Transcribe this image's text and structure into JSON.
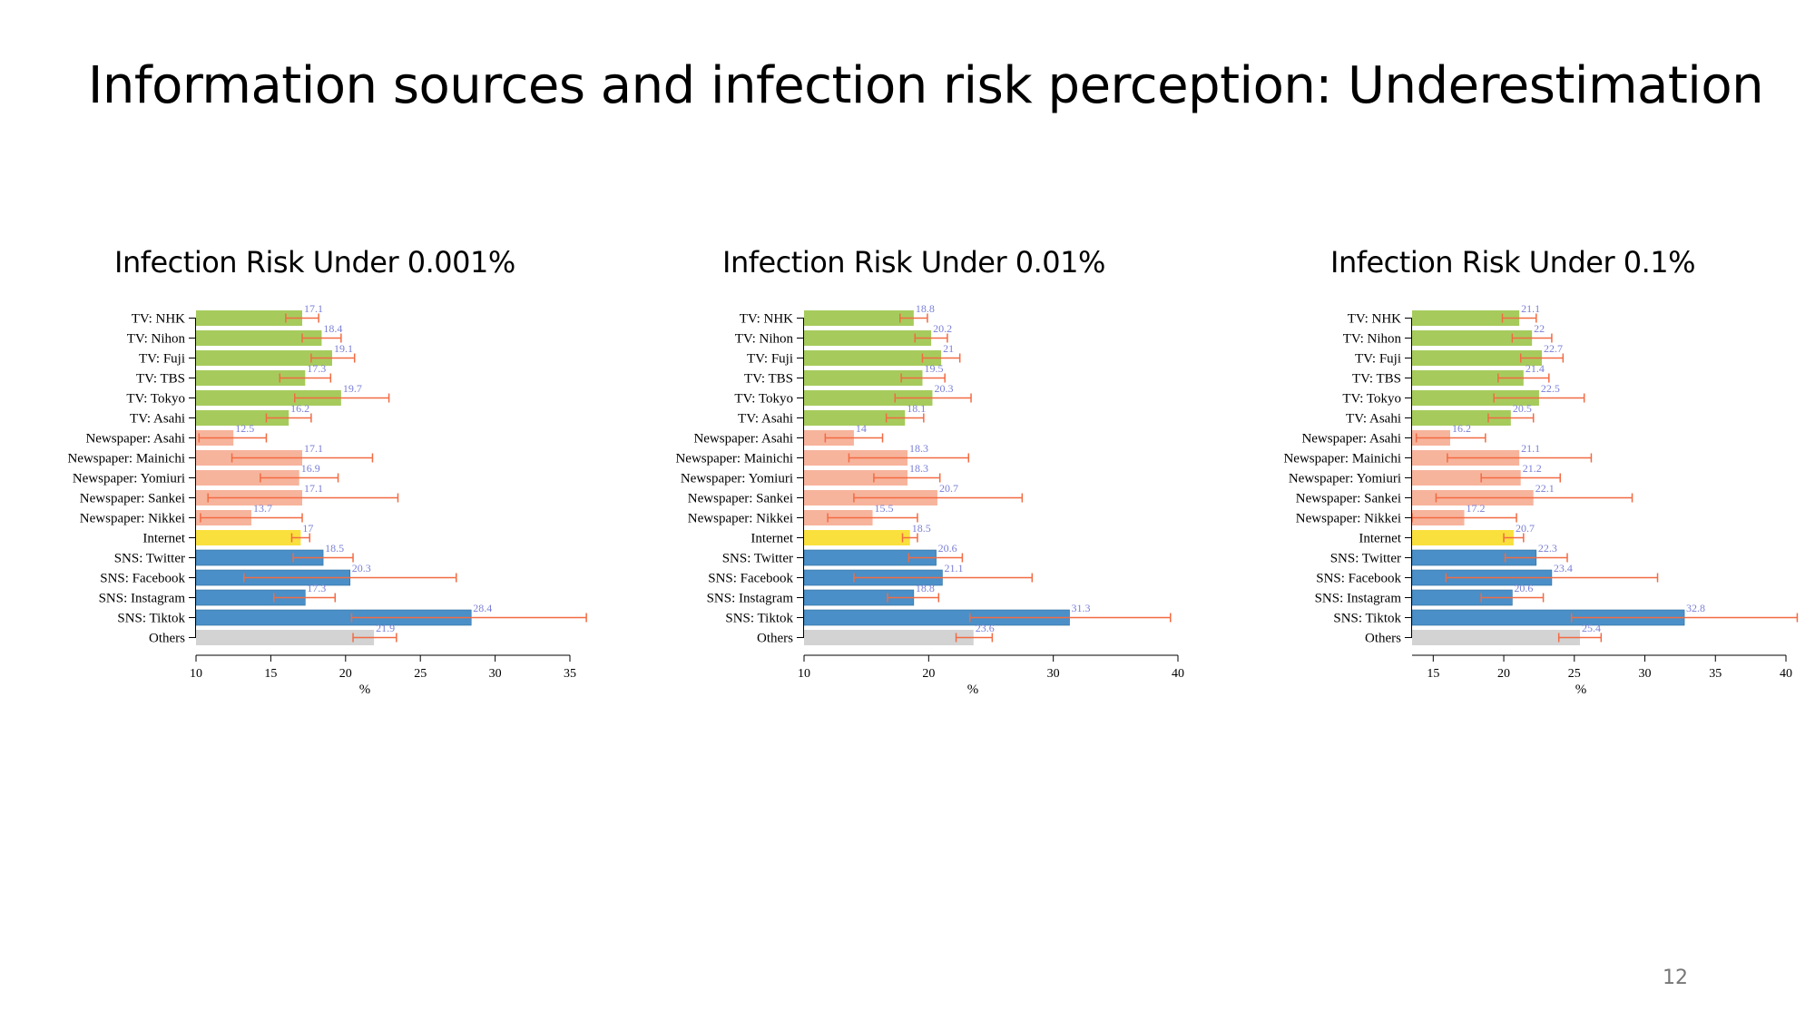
{
  "slide": {
    "title": "Information sources and infection risk perception: Underestimation",
    "page_number": "12"
  },
  "colors": {
    "tv": "#a6cb5c",
    "newspaper": "#f7b49c",
    "internet": "#fae03c",
    "sns": "#4a8fc7",
    "others": "#d3d3d3",
    "error_bar": "#f26b43",
    "data_label": "#7a7fd6"
  },
  "chart_data": [
    {
      "type": "bar",
      "orientation": "horizontal",
      "title": "Infection Risk Under 0.001%",
      "xlabel": "%",
      "xlim": [
        10,
        35
      ],
      "xticks": [
        10,
        15,
        20,
        25,
        30,
        35
      ],
      "categories": [
        "TV: NHK",
        "TV: Nihon",
        "TV: Fuji",
        "TV: TBS",
        "TV: Tokyo",
        "TV: Asahi",
        "Newspaper: Asahi",
        "Newspaper: Mainichi",
        "Newspaper: Yomiuri",
        "Newspaper: Sankei",
        "Newspaper: Nikkei",
        "Internet",
        "SNS: Twitter",
        "SNS: Facebook",
        "SNS: Instagram",
        "SNS: Tiktok",
        "Others"
      ],
      "groups": [
        "tv",
        "tv",
        "tv",
        "tv",
        "tv",
        "tv",
        "newspaper",
        "newspaper",
        "newspaper",
        "newspaper",
        "newspaper",
        "internet",
        "sns",
        "sns",
        "sns",
        "sns",
        "others"
      ],
      "values": [
        17.1,
        18.4,
        19.1,
        17.3,
        19.7,
        16.2,
        12.5,
        17.1,
        16.9,
        17.1,
        13.7,
        17,
        18.5,
        20.3,
        17.3,
        28.4,
        21.9
      ],
      "err_low": [
        16.0,
        17.1,
        17.7,
        15.6,
        16.6,
        14.7,
        10.2,
        12.4,
        14.3,
        10.8,
        10.3,
        16.4,
        16.5,
        13.2,
        15.2,
        20.4,
        20.5
      ],
      "err_high": [
        18.2,
        19.7,
        20.6,
        19.0,
        22.9,
        17.7,
        14.7,
        21.8,
        19.5,
        23.5,
        17.1,
        17.6,
        20.5,
        27.4,
        19.3,
        36.1,
        23.4
      ]
    },
    {
      "type": "bar",
      "orientation": "horizontal",
      "title": "Infection Risk Under 0.01%",
      "xlabel": "%",
      "xlim": [
        10,
        40
      ],
      "xticks": [
        10,
        20,
        30,
        40
      ],
      "categories": [
        "TV: NHK",
        "TV: Nihon",
        "TV: Fuji",
        "TV: TBS",
        "TV: Tokyo",
        "TV: Asahi",
        "Newspaper: Asahi",
        "Newspaper: Mainichi",
        "Newspaper: Yomiuri",
        "Newspaper: Sankei",
        "Newspaper: Nikkei",
        "Internet",
        "SNS: Twitter",
        "SNS: Facebook",
        "SNS: Instagram",
        "SNS: Tiktok",
        "Others"
      ],
      "groups": [
        "tv",
        "tv",
        "tv",
        "tv",
        "tv",
        "tv",
        "newspaper",
        "newspaper",
        "newspaper",
        "newspaper",
        "newspaper",
        "internet",
        "sns",
        "sns",
        "sns",
        "sns",
        "others"
      ],
      "values": [
        18.8,
        20.2,
        21,
        19.5,
        20.3,
        18.1,
        14,
        18.3,
        18.3,
        20.7,
        15.5,
        18.5,
        20.6,
        21.1,
        18.8,
        31.3,
        23.6
      ],
      "err_low": [
        17.7,
        18.9,
        19.5,
        17.8,
        17.3,
        16.6,
        11.7,
        13.6,
        15.6,
        14.0,
        11.9,
        17.9,
        18.4,
        14.0,
        16.7,
        23.3,
        22.2
      ],
      "err_high": [
        19.9,
        21.5,
        22.5,
        21.3,
        23.4,
        19.6,
        16.3,
        23.2,
        20.9,
        27.5,
        19.1,
        19.1,
        22.7,
        28.3,
        20.8,
        39.4,
        25.1
      ]
    },
    {
      "type": "bar",
      "orientation": "horizontal",
      "title": "Infection Risk Under 0.1%",
      "xlabel": "%",
      "xlim": [
        13.5,
        40
      ],
      "xticks": [
        15,
        20,
        25,
        30,
        35,
        40
      ],
      "categories": [
        "TV: NHK",
        "TV: Nihon",
        "TV: Fuji",
        "TV: TBS",
        "TV: Tokyo",
        "TV: Asahi",
        "Newspaper: Asahi",
        "Newspaper: Mainichi",
        "Newspaper: Yomiuri",
        "Newspaper: Sankei",
        "Newspaper: Nikkei",
        "Internet",
        "SNS: Twitter",
        "SNS: Facebook",
        "SNS: Instagram",
        "SNS: Tiktok",
        "Others"
      ],
      "groups": [
        "tv",
        "tv",
        "tv",
        "tv",
        "tv",
        "tv",
        "newspaper",
        "newspaper",
        "newspaper",
        "newspaper",
        "newspaper",
        "internet",
        "sns",
        "sns",
        "sns",
        "sns",
        "others"
      ],
      "values": [
        21.1,
        22,
        22.7,
        21.4,
        22.5,
        20.5,
        16.2,
        21.1,
        21.2,
        22.1,
        17.2,
        20.7,
        22.3,
        23.4,
        20.6,
        32.8,
        25.4
      ],
      "err_low": [
        19.9,
        20.6,
        21.2,
        19.6,
        19.3,
        18.9,
        13.8,
        16.0,
        18.4,
        15.2,
        13.5,
        20.0,
        20.1,
        15.9,
        18.4,
        24.8,
        23.9
      ],
      "err_high": [
        22.3,
        23.4,
        24.2,
        23.2,
        25.7,
        22.1,
        18.7,
        26.2,
        24.0,
        29.1,
        20.9,
        21.4,
        24.5,
        30.9,
        22.8,
        40.8,
        26.9
      ]
    }
  ]
}
